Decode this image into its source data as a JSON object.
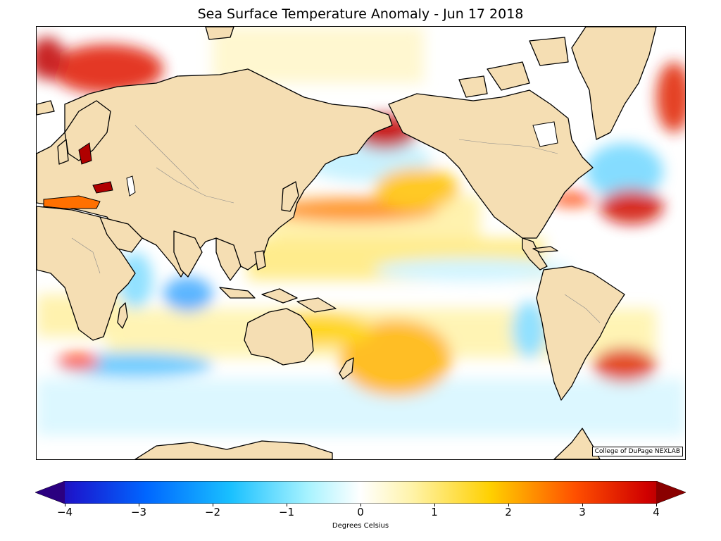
{
  "title": "Sea Surface Temperature Anomaly - Jun 17 2018",
  "credit": "College of DuPage NEXLAB",
  "colorbar": {
    "label": "Degrees Celsius",
    "min": -4,
    "max": 4,
    "ticks": [
      "−4",
      "−3",
      "−2",
      "−1",
      "0",
      "1",
      "2",
      "3",
      "4"
    ],
    "colors": {
      "ocean": "#ffffff",
      "land": "#f5deb3",
      "coast": "#000000",
      "border": "#8a8a8a"
    }
  }
}
